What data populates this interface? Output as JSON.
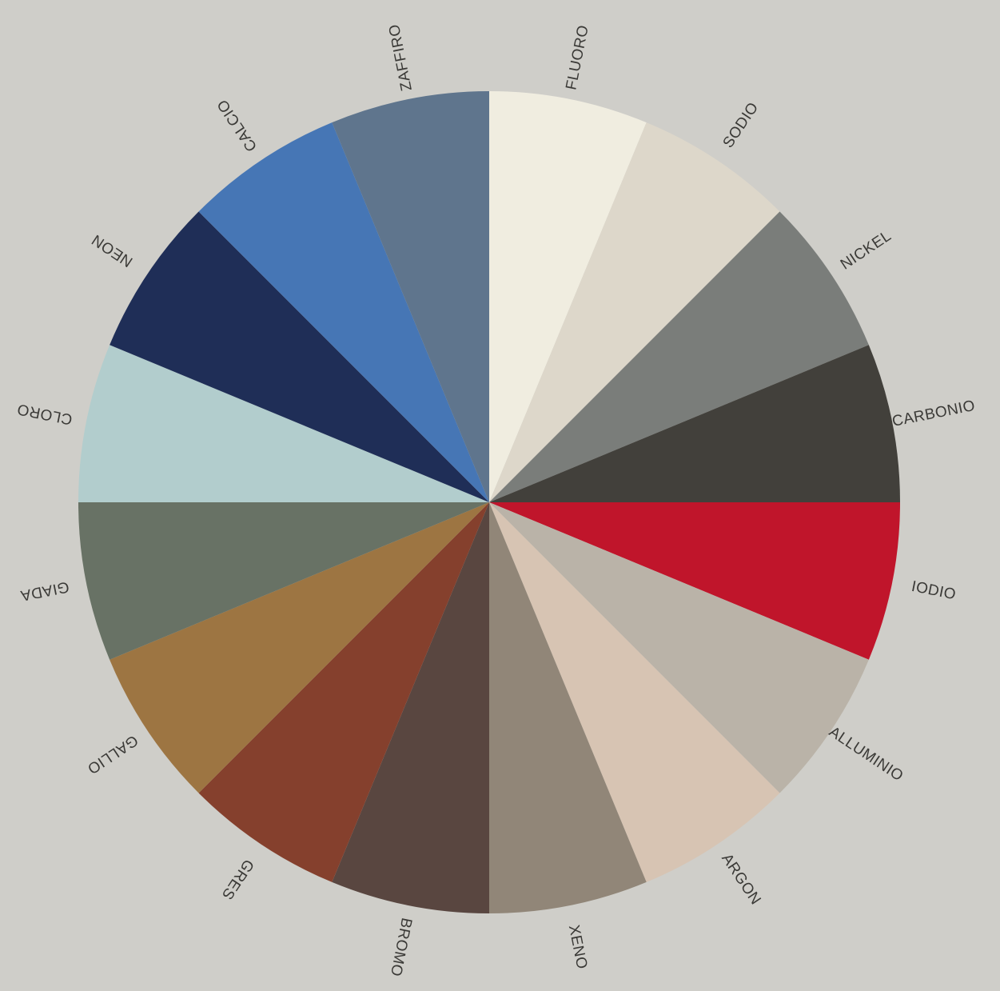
{
  "wheel": {
    "background": "#CFCEC9",
    "label_color": "#3A3936",
    "start_label": "FLUORO",
    "direction": "clockwise",
    "segments": [
      {
        "name": "FLUORO",
        "color": "#F0EDE0"
      },
      {
        "name": "SODIO",
        "color": "#DDD7CA"
      },
      {
        "name": "NICKEL",
        "color": "#7A7D7A"
      },
      {
        "name": "CARBONIO",
        "color": "#42403B"
      },
      {
        "name": "IODIO",
        "color": "#C0152B"
      },
      {
        "name": "ALLUMINIO",
        "color": "#BAB3A8"
      },
      {
        "name": "ARGON",
        "color": "#D7C4B3"
      },
      {
        "name": "XENO",
        "color": "#918678"
      },
      {
        "name": "BROMO",
        "color": "#594640"
      },
      {
        "name": "GRES",
        "color": "#85402D"
      },
      {
        "name": "GALLIO",
        "color": "#9D7542"
      },
      {
        "name": "GIADA",
        "color": "#687265"
      },
      {
        "name": "CLORO",
        "color": "#B2CDCD"
      },
      {
        "name": "NEON",
        "color": "#1F2E57"
      },
      {
        "name": "CALCIO",
        "color": "#4676B5"
      },
      {
        "name": "ZAFFIRO",
        "color": "#5F758D"
      }
    ]
  }
}
